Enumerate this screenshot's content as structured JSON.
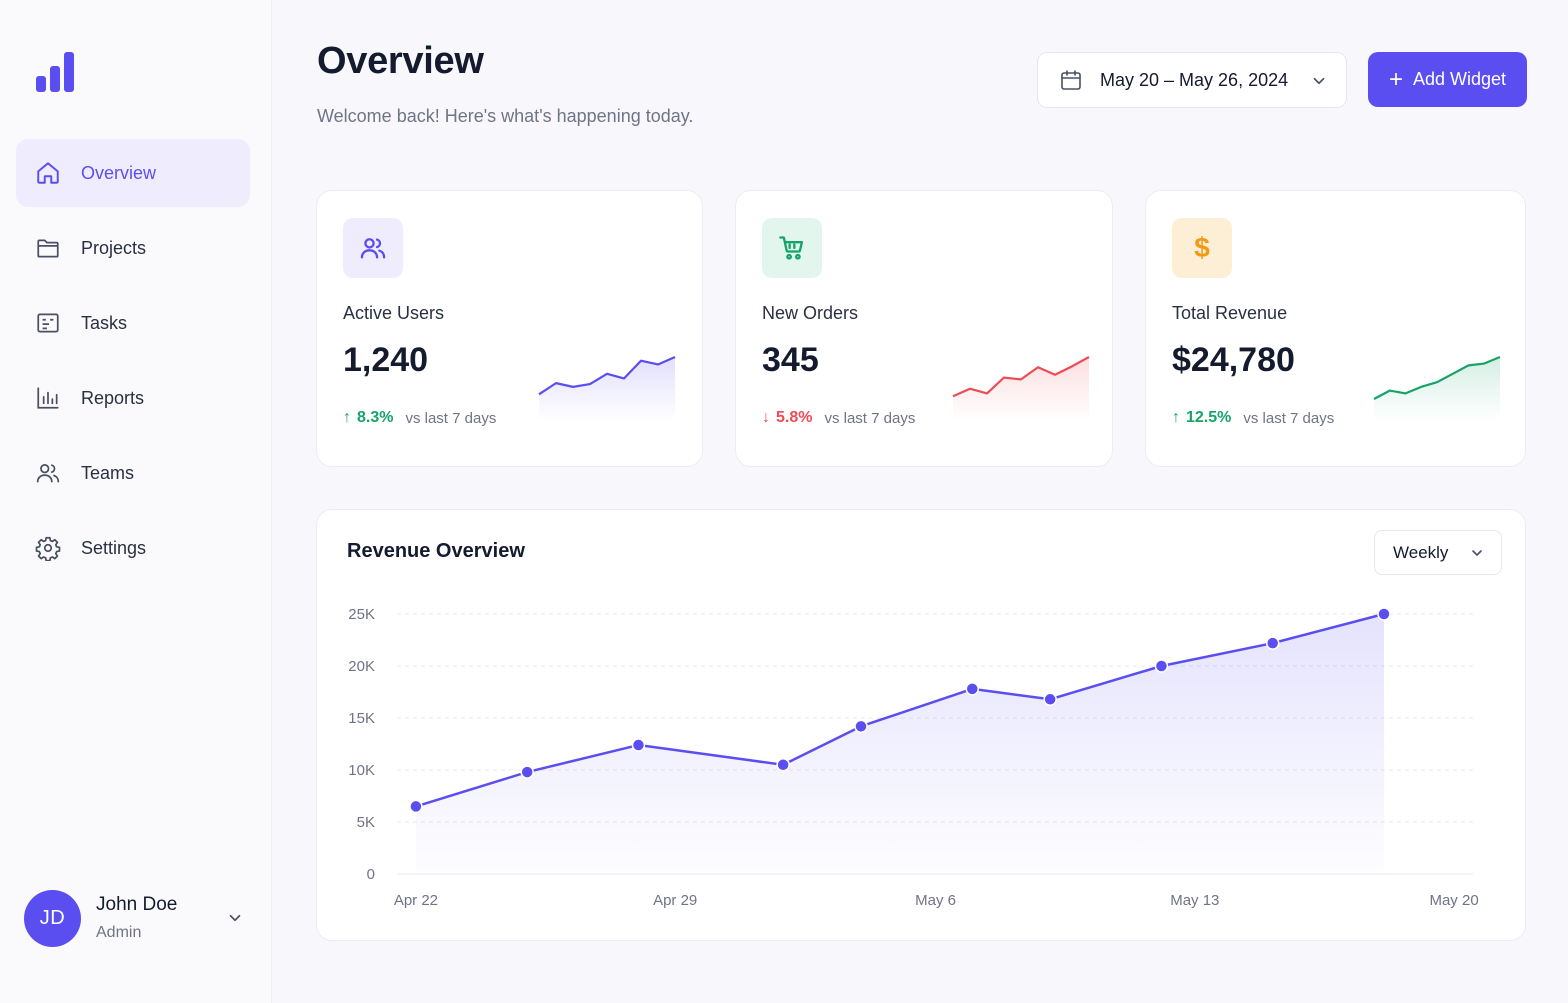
{
  "sidebar": {
    "items": [
      {
        "label": "Overview",
        "icon": "home-icon",
        "active": true
      },
      {
        "label": "Projects",
        "icon": "folder-icon"
      },
      {
        "label": "Tasks",
        "icon": "tasks-icon"
      },
      {
        "label": "Reports",
        "icon": "bar-chart-icon"
      },
      {
        "label": "Teams",
        "icon": "users-icon"
      },
      {
        "label": "Settings",
        "icon": "gear-icon"
      }
    ],
    "user": {
      "initials": "JD",
      "name": "John Doe",
      "role": "Admin"
    }
  },
  "header": {
    "title": "Overview",
    "subtitle": "Welcome back! Here's what's happening today.",
    "date_range": "May 20 – May 26, 2024",
    "add_widget_label": "Add Widget"
  },
  "colors": {
    "accent": "#5b4ef0",
    "positive": "#16a36a",
    "negative": "#ef4b57",
    "orange": "#f29a14"
  },
  "stats": [
    {
      "title": "Active Users",
      "value": "1,240",
      "delta": "8.3%",
      "direction": "up",
      "comparison": "vs last 7 days",
      "icon": "users-icon",
      "color": "#5b4ef0",
      "spark": [
        2,
        3.2,
        2.8,
        3.1,
        4.2,
        3.7,
        5.6,
        5.2,
        6
      ]
    },
    {
      "title": "New Orders",
      "value": "345",
      "delta": "5.8%",
      "direction": "down",
      "comparison": "vs last 7 days",
      "icon": "cart-icon",
      "color": "#ef4b57",
      "spark": [
        1.8,
        2.6,
        2.1,
        3.8,
        3.6,
        4.9,
        4.1,
        5,
        6
      ]
    },
    {
      "title": "Total Revenue",
      "value": "$24,780",
      "delta": "12.5%",
      "direction": "up",
      "comparison": "vs last 7 days",
      "icon": "dollar-icon",
      "color": "#16a36a",
      "spark": [
        1.5,
        2.4,
        2.1,
        2.8,
        3.3,
        4.2,
        5.1,
        5.3,
        6
      ]
    }
  ],
  "revenue_chart": {
    "title": "Revenue Overview",
    "period": "Weekly"
  },
  "chart_data": {
    "type": "area",
    "title": "Revenue Overview",
    "x_tick_labels": [
      "Apr 22",
      "Apr 29",
      "May 6",
      "May 13",
      "May 20"
    ],
    "x": [
      0,
      1,
      2,
      3.3,
      4,
      5,
      5.7,
      6.7,
      7.7,
      8.7
    ],
    "x_tick_positions": [
      0,
      2.33,
      4.67,
      7,
      9.33
    ],
    "values": [
      6500,
      9800,
      12400,
      10500,
      14200,
      17800,
      16800,
      20000,
      22200,
      25000
    ],
    "ylim": [
      0,
      25000
    ],
    "y_ticks": [
      0,
      5000,
      10000,
      15000,
      20000,
      25000
    ],
    "y_tick_labels": [
      "0",
      "5K",
      "10K",
      "15K",
      "20K",
      "25K"
    ],
    "grid": true
  }
}
